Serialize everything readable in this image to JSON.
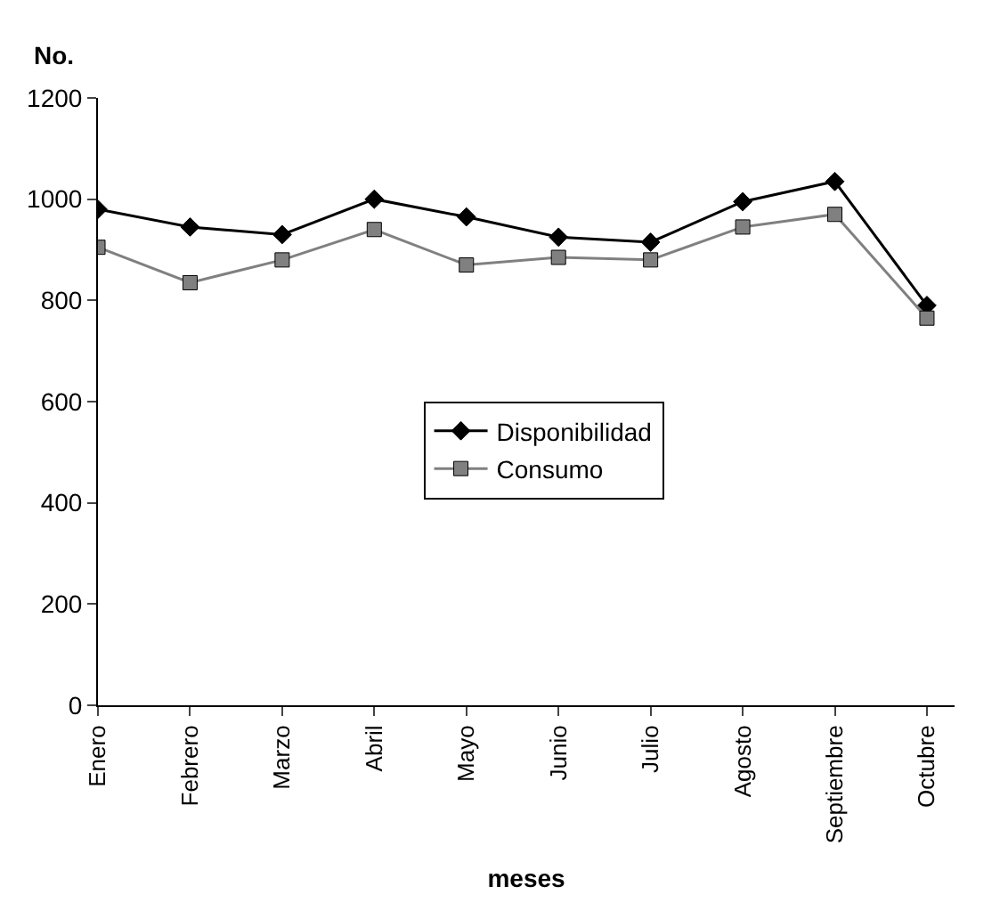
{
  "chart_data": {
    "type": "line",
    "xlabel": "meses",
    "ylabel": "No.",
    "categories": [
      "Enero",
      "Febrero",
      "Marzo",
      "Abril",
      "Mayo",
      "Junio",
      "Julio",
      "Agosto",
      "Septiembre",
      "Octubre"
    ],
    "series": [
      {
        "name": "Disponibilidad",
        "color": "#000000",
        "marker": "diamond",
        "values": [
          980,
          945,
          930,
          1000,
          965,
          925,
          915,
          995,
          1035,
          790
        ]
      },
      {
        "name": "Consumo",
        "color": "#808080",
        "marker": "square",
        "values": [
          905,
          835,
          880,
          940,
          870,
          885,
          880,
          945,
          970,
          765
        ]
      }
    ],
    "ylim": [
      0,
      1200
    ],
    "yticks": [
      0,
      200,
      400,
      600,
      800,
      1000,
      1200
    ],
    "legend": "center"
  }
}
